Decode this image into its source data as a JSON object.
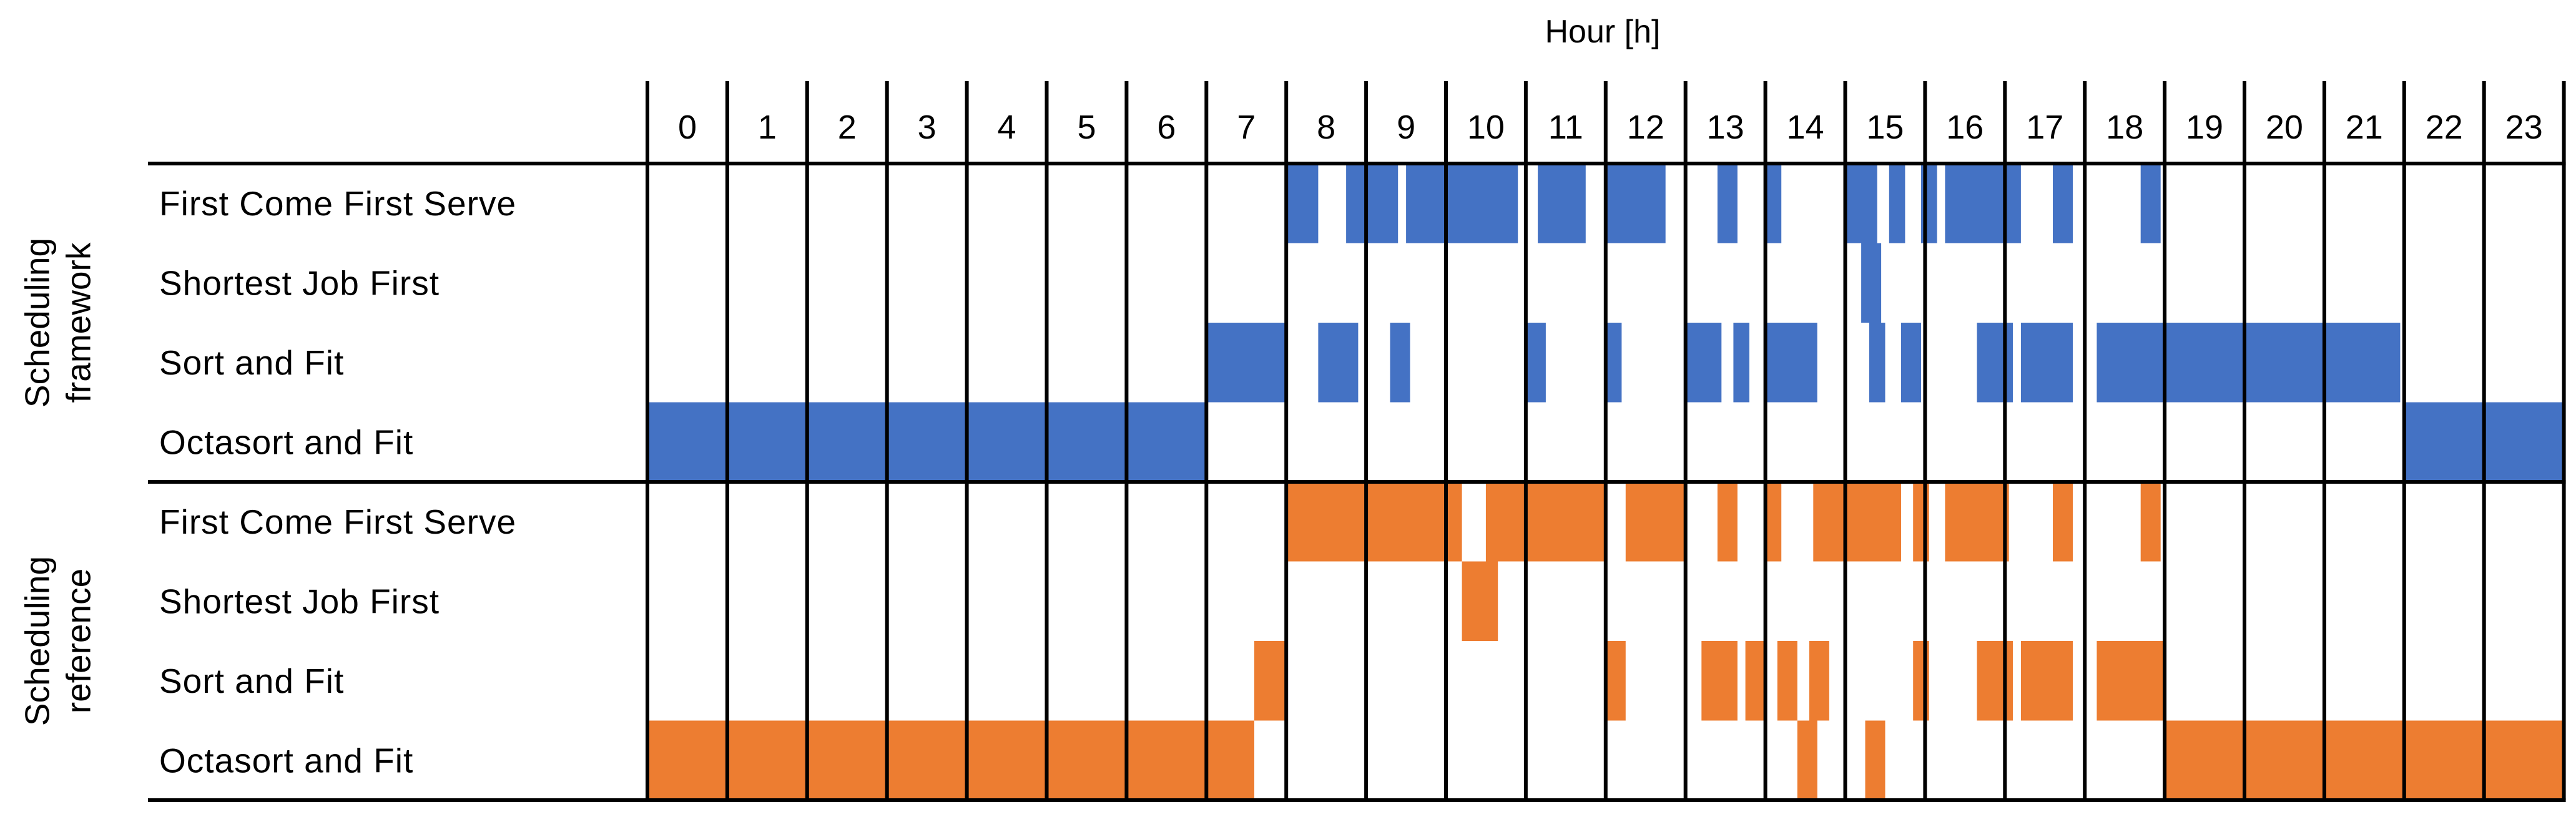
{
  "chart_data": {
    "type": "heatmap",
    "x_title": "Hour [h]",
    "hours": [
      "0",
      "1",
      "2",
      "3",
      "4",
      "5",
      "6",
      "7",
      "8",
      "9",
      "10",
      "11",
      "12",
      "13",
      "14",
      "15",
      "16",
      "17",
      "18",
      "19",
      "20",
      "21",
      "22",
      "23"
    ],
    "groups": [
      {
        "label_line1": "Scheduling",
        "label_line2": "framework",
        "color": "#4472C4",
        "rows": [
          {
            "name": "First Come First Serve",
            "intervals": [
              [
                8.0,
                8.4
              ],
              [
                8.75,
                9.4
              ],
              [
                9.5,
                10.9
              ],
              [
                11.15,
                11.75
              ],
              [
                12.0,
                12.75
              ],
              [
                13.4,
                13.65
              ],
              [
                14.0,
                14.2
              ],
              [
                15.0,
                15.4
              ],
              [
                15.55,
                15.75
              ],
              [
                15.95,
                16.15
              ],
              [
                16.25,
                17.2
              ],
              [
                17.6,
                17.85
              ],
              [
                18.7,
                18.95
              ]
            ]
          },
          {
            "name": "Shortest Job First",
            "intervals": [
              [
                15.2,
                15.45
              ]
            ]
          },
          {
            "name": "Sort and Fit",
            "intervals": [
              [
                7.0,
                8.0
              ],
              [
                8.4,
                8.9
              ],
              [
                9.3,
                9.55
              ],
              [
                11.0,
                11.25
              ],
              [
                12.0,
                12.2
              ],
              [
                13.0,
                13.45
              ],
              [
                13.6,
                13.8
              ],
              [
                14.0,
                14.65
              ],
              [
                15.3,
                15.5
              ],
              [
                15.7,
                15.95
              ],
              [
                16.65,
                17.1
              ],
              [
                17.2,
                17.85
              ],
              [
                18.15,
                21.95
              ]
            ]
          },
          {
            "name": "Octasort and Fit",
            "intervals": [
              [
                0.0,
                7.0
              ],
              [
                22.0,
                24.0
              ]
            ]
          }
        ]
      },
      {
        "label_line1": "Scheduling",
        "label_line2": "reference",
        "color": "#ED7D31",
        "rows": [
          {
            "name": "First Come First Serve",
            "intervals": [
              [
                8.0,
                10.2
              ],
              [
                10.5,
                12.0
              ],
              [
                12.25,
                13.0
              ],
              [
                13.4,
                13.65
              ],
              [
                14.0,
                14.2
              ],
              [
                14.6,
                15.7
              ],
              [
                15.85,
                16.05
              ],
              [
                16.25,
                17.05
              ],
              [
                17.6,
                17.85
              ],
              [
                18.7,
                18.95
              ]
            ]
          },
          {
            "name": "Shortest Job First",
            "intervals": [
              [
                10.2,
                10.65
              ]
            ]
          },
          {
            "name": "Sort and Fit",
            "intervals": [
              [
                7.6,
                8.0
              ],
              [
                12.0,
                12.25
              ],
              [
                13.2,
                13.65
              ],
              [
                13.75,
                14.0
              ],
              [
                14.15,
                14.4
              ],
              [
                14.55,
                14.8
              ],
              [
                15.85,
                16.05
              ],
              [
                16.65,
                17.1
              ],
              [
                17.2,
                17.85
              ],
              [
                18.15,
                19.0
              ]
            ]
          },
          {
            "name": "Octasort and Fit",
            "intervals": [
              [
                0.0,
                7.6
              ],
              [
                14.4,
                14.65
              ],
              [
                15.25,
                15.5
              ],
              [
                19.0,
                24.0
              ]
            ]
          }
        ]
      }
    ]
  }
}
